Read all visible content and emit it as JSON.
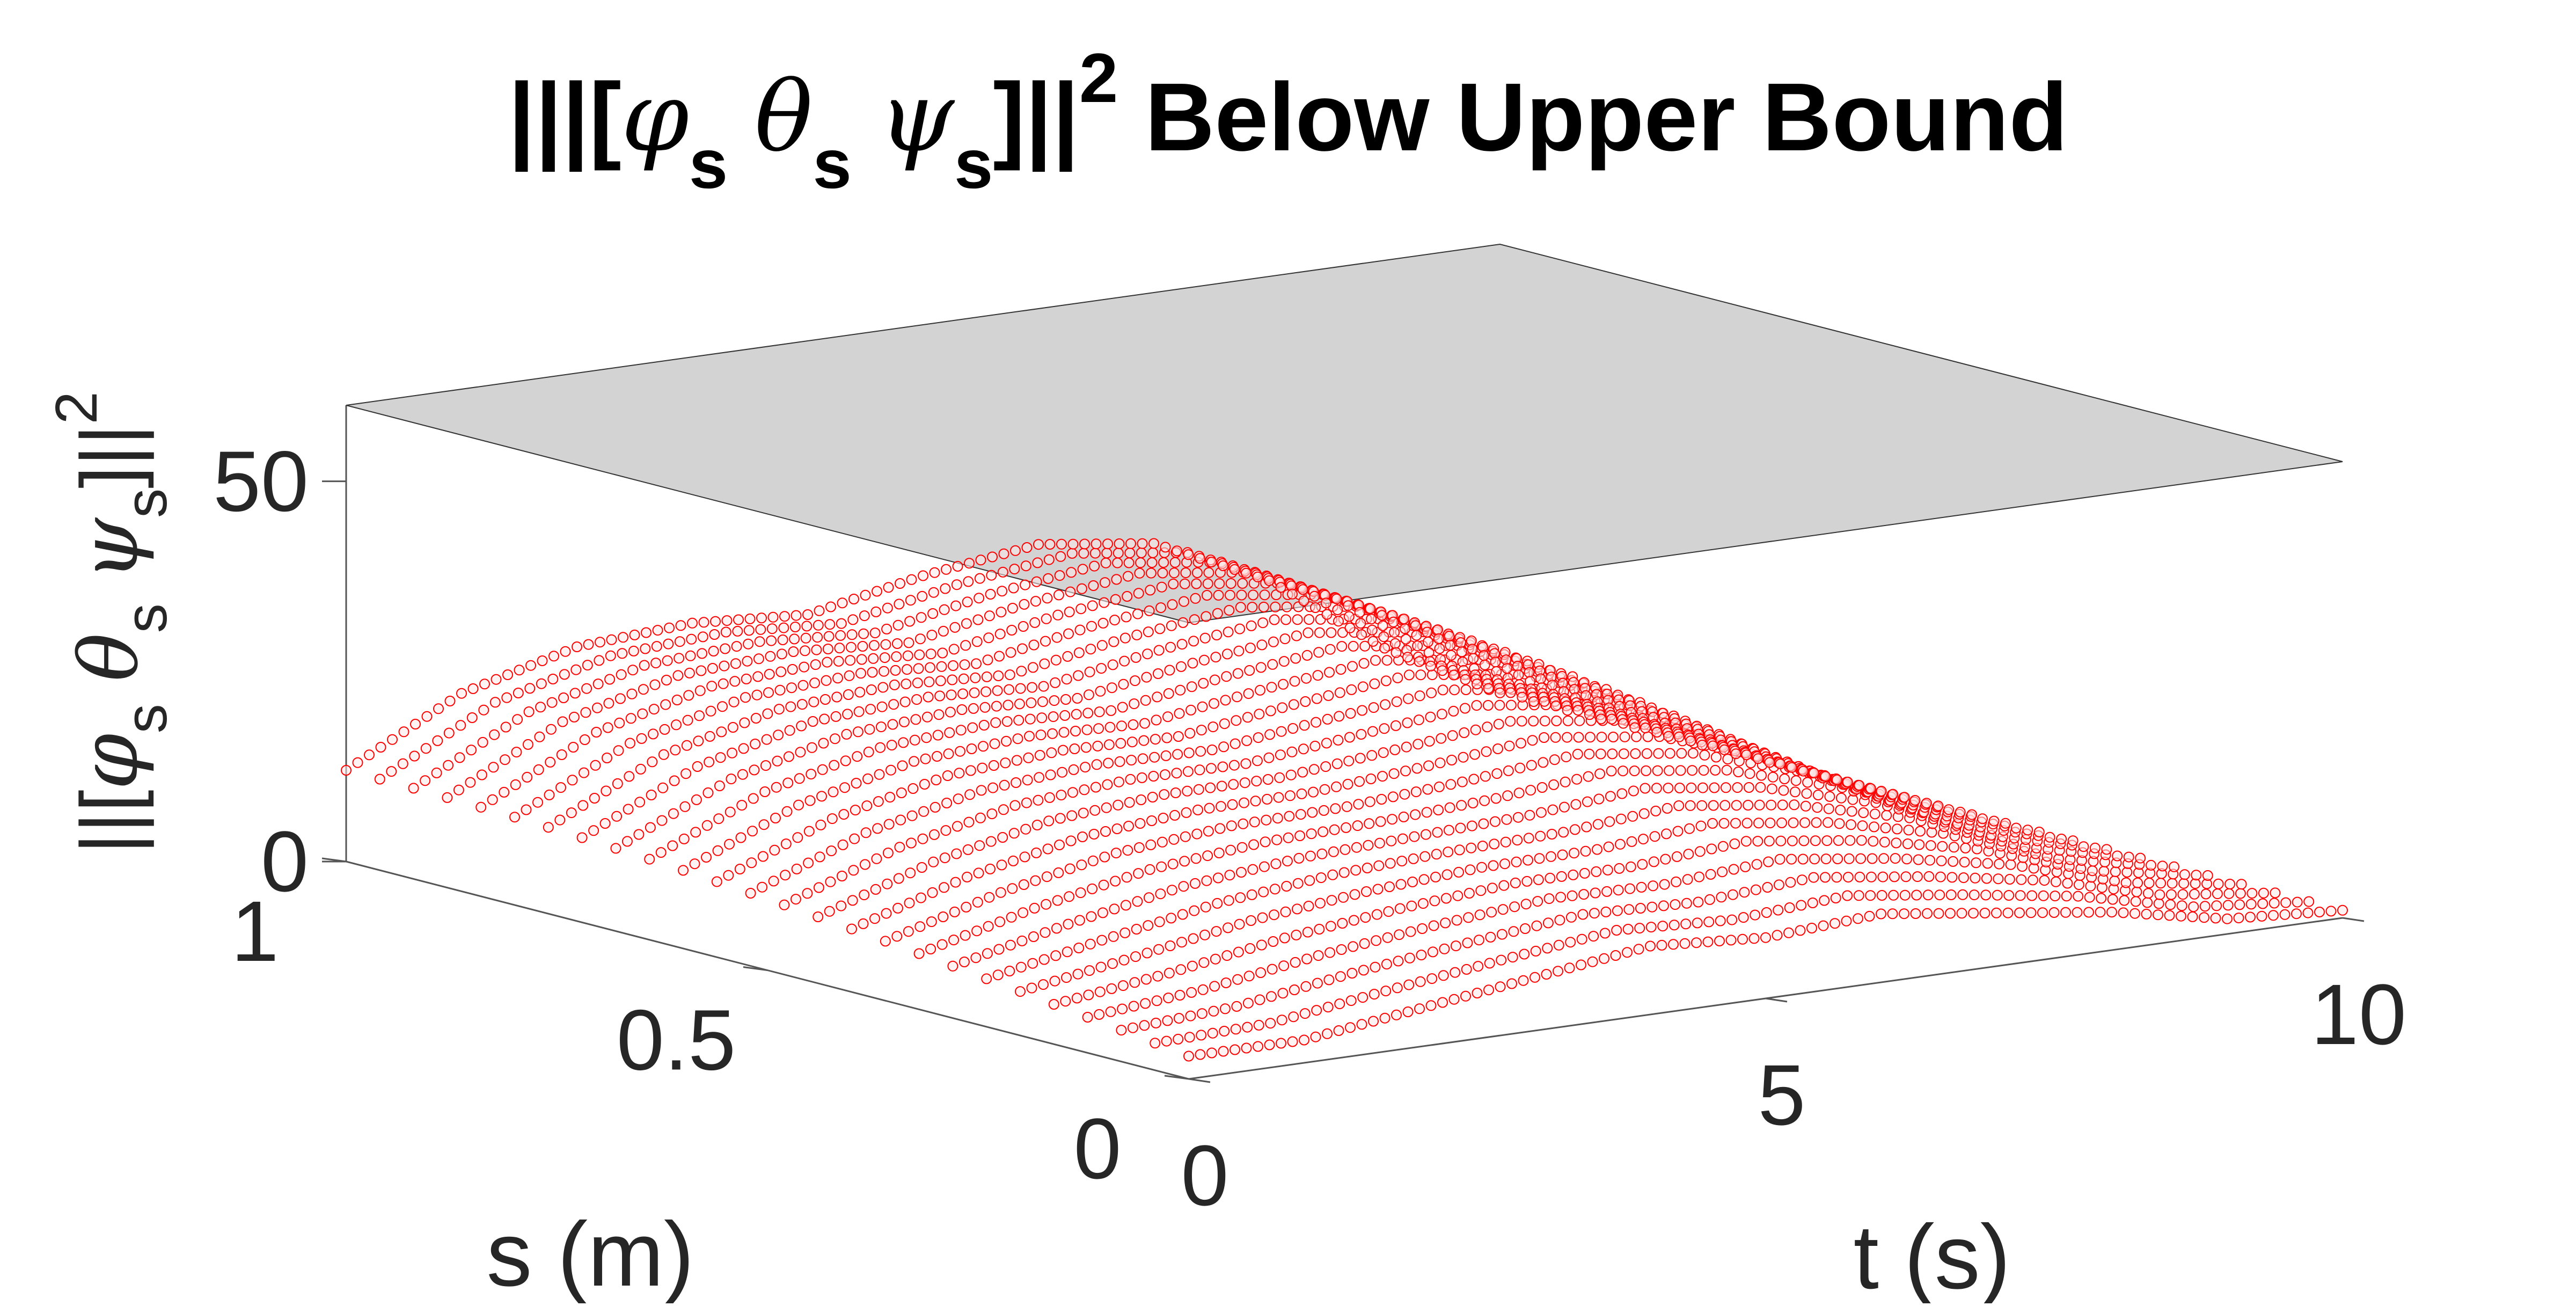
{
  "chart_data": {
    "type": "surface3d",
    "title": {
      "main": "|||[",
      "sym_phi": "φ",
      "sym_theta": "θ",
      "sym_psi": "ψ",
      "sub": "s",
      "close": "]||",
      "power": "2",
      "rest": "Below Upper Bound"
    },
    "zlabel": {
      "open": "||[",
      "sym_phi": "φ",
      "sym_theta": "θ",
      "sym_psi": "ψ",
      "sub": "s",
      "close": "]||",
      "power": "2"
    },
    "xlabel": "t (s)",
    "ylabel": "s (m)",
    "xlim": [
      0,
      10
    ],
    "ylim": [
      0,
      1
    ],
    "zlim": [
      0,
      60
    ],
    "x_ticks": [
      {
        "value": 0,
        "label": "0"
      },
      {
        "value": 5,
        "label": "5"
      },
      {
        "value": 10,
        "label": "10"
      }
    ],
    "y_ticks": [
      {
        "value": 0,
        "label": "0"
      },
      {
        "value": 0.5,
        "label": "0.5"
      },
      {
        "value": 1,
        "label": "1"
      }
    ],
    "z_ticks": [
      {
        "value": 0,
        "label": "0"
      },
      {
        "value": 50,
        "label": "50"
      }
    ],
    "upper_bound": {
      "z": 60,
      "color": "#d3d3d3"
    },
    "surface": {
      "marker": "circle",
      "color": "#ff0000",
      "corner_values": {
        "t0_s0": 3,
        "t0_s1": 12,
        "t10_s0": 1,
        "t10_s1": 1
      },
      "edge_s1_profile": {
        "t": [
          0,
          1,
          2,
          3,
          4,
          5,
          6,
          7,
          8,
          9,
          10
        ],
        "z": [
          12,
          20,
          24,
          25,
          24,
          27,
          29,
          27,
          20,
          9,
          1
        ]
      },
      "edge_s0_profile": {
        "t": [
          0,
          1,
          2,
          3,
          4,
          5,
          6,
          7,
          8,
          9,
          10
        ],
        "z": [
          3,
          3,
          5,
          7,
          9,
          8,
          9,
          7,
          5,
          2,
          1
        ]
      }
    },
    "grid": false,
    "legend": "none"
  }
}
